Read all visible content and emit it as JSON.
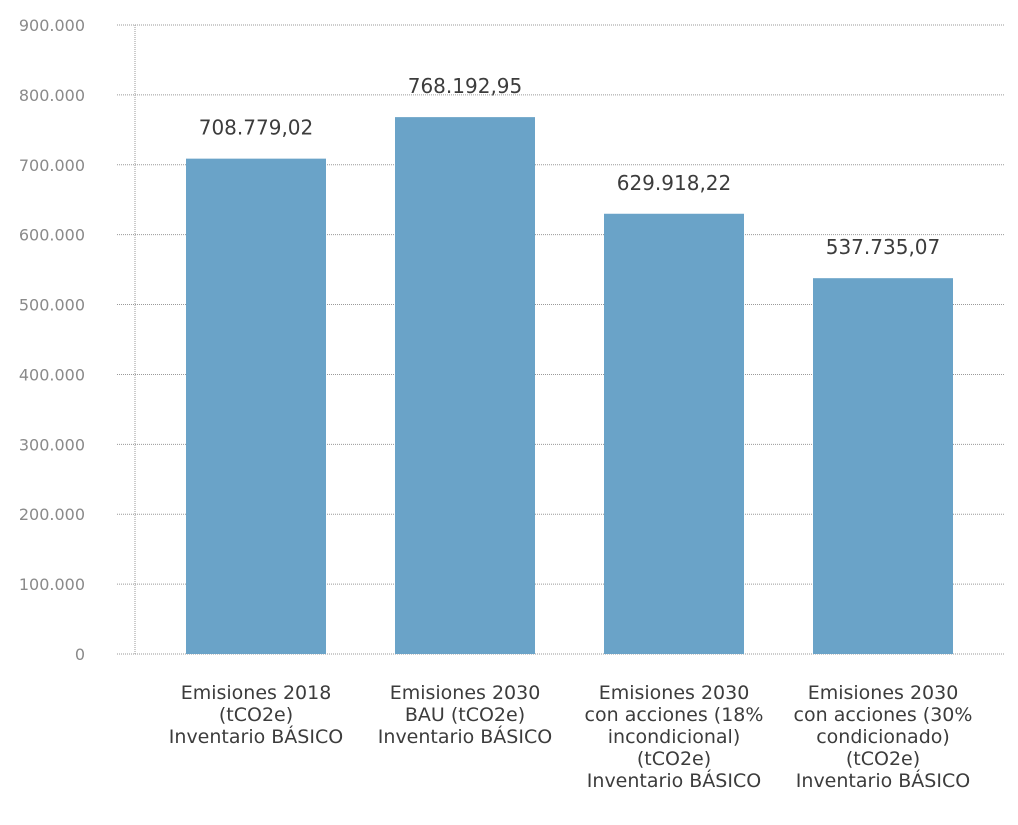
{
  "chart_data": {
    "type": "bar",
    "categories": [
      [
        "Emisiones 2018",
        "(tCO2e)",
        "Inventario BÁSICO"
      ],
      [
        "Emisiones 2030",
        "BAU (tCO2e)",
        "Inventario BÁSICO"
      ],
      [
        "Emisiones 2030",
        "con acciones (18%",
        "incondicional)",
        "(tCO2e)",
        "Inventario BÁSICO"
      ],
      [
        "Emisiones 2030",
        "con acciones (30%",
        "condicionado)",
        "(tCO2e)",
        "Inventario BÁSICO"
      ]
    ],
    "values": [
      708779.02,
      768192.95,
      629918.22,
      537735.07
    ],
    "data_labels": [
      "708.779,02",
      "768.192,95",
      "629.918,22",
      "537.735,07"
    ],
    "yticks": [
      0,
      100000,
      200000,
      300000,
      400000,
      500000,
      600000,
      700000,
      800000,
      900000
    ],
    "ytick_labels": [
      "0",
      "100.000",
      "200.000",
      "300.000",
      "400.000",
      "500.000",
      "600.000",
      "700.000",
      "800.000",
      "900.000"
    ],
    "ylim": [
      0,
      900000
    ],
    "grid": true,
    "legend": "none",
    "bar_color": "#6aa3c8",
    "grid_color": "#9a9a9a",
    "title": "",
    "xlabel": "",
    "ylabel": ""
  }
}
